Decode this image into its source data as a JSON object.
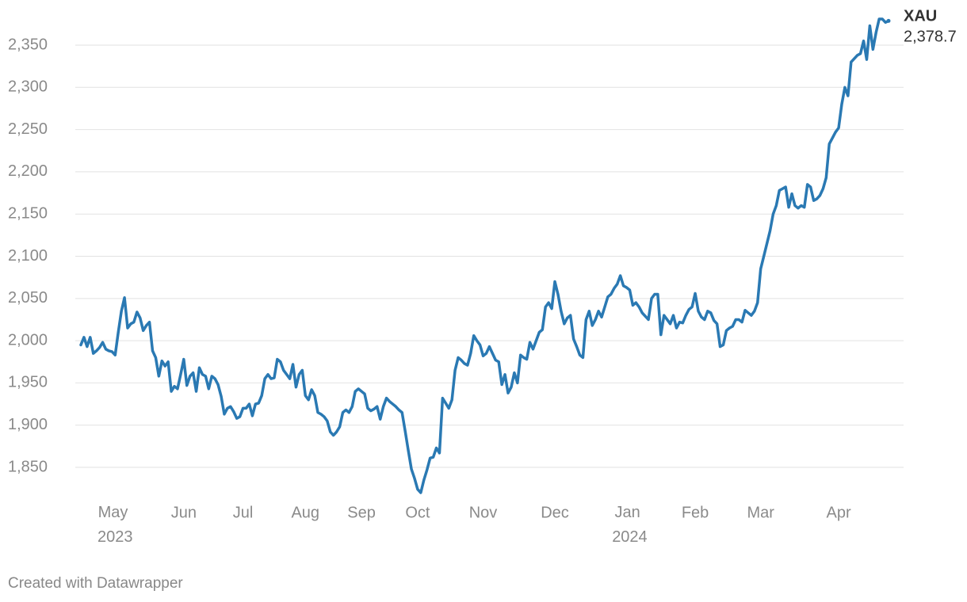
{
  "chart_data": {
    "type": "line",
    "categories": [
      null,
      null,
      null,
      null,
      null,
      null,
      null,
      null,
      null,
      null,
      null,
      "May 2023",
      null,
      null,
      null,
      null,
      null,
      null,
      null,
      null,
      null,
      null,
      null,
      null,
      null,
      null,
      null,
      null,
      null,
      null,
      null,
      null,
      null,
      "Jun",
      null,
      null,
      null,
      null,
      null,
      null,
      null,
      null,
      null,
      null,
      null,
      null,
      null,
      null,
      null,
      null,
      null,
      null,
      "Jul",
      null,
      null,
      null,
      null,
      null,
      null,
      null,
      null,
      null,
      null,
      null,
      null,
      null,
      null,
      null,
      null,
      null,
      null,
      null,
      "Aug",
      null,
      null,
      null,
      null,
      null,
      null,
      null,
      null,
      null,
      null,
      null,
      null,
      null,
      null,
      null,
      null,
      null,
      "Sep",
      null,
      null,
      null,
      null,
      null,
      null,
      null,
      null,
      null,
      null,
      null,
      null,
      null,
      null,
      null,
      null,
      null,
      "Oct",
      null,
      null,
      null,
      null,
      null,
      null,
      null,
      null,
      null,
      null,
      null,
      null,
      null,
      null,
      null,
      null,
      null,
      null,
      null,
      null,
      "Nov",
      null,
      null,
      null,
      null,
      null,
      null,
      null,
      null,
      null,
      null,
      null,
      null,
      null,
      null,
      null,
      null,
      null,
      null,
      null,
      null,
      null,
      null,
      "Dec",
      null,
      null,
      null,
      null,
      null,
      null,
      null,
      null,
      null,
      null,
      null,
      null,
      null,
      null,
      null,
      null,
      null,
      null,
      null,
      null,
      null,
      null,
      null,
      "Jan 2024",
      null,
      null,
      null,
      null,
      null,
      null,
      null,
      null,
      null,
      null,
      null,
      null,
      null,
      null,
      null,
      null,
      null,
      null,
      null,
      null,
      "Feb",
      null,
      null,
      null,
      null,
      null,
      null,
      null,
      null,
      null,
      null,
      null,
      null,
      null,
      null,
      null,
      null,
      null,
      null,
      null,
      null,
      "Mar",
      null,
      null,
      null,
      null,
      null,
      null,
      null,
      null,
      null,
      null,
      null,
      null,
      null,
      null,
      null,
      null,
      null,
      null,
      null,
      null,
      null,
      null,
      null,
      null,
      "Apr",
      null,
      null,
      null,
      null,
      null,
      null,
      null,
      null,
      null,
      null,
      null,
      null,
      null,
      null,
      null,
      null
    ],
    "series": [
      {
        "name": "XAU",
        "color": "#2a79b3",
        "end_label": "2,378.7",
        "values": [
          1995,
          2004,
          1993,
          2004,
          1985,
          1988,
          1992,
          1998,
          1990,
          1988,
          1987,
          1983,
          2010,
          2035,
          2051,
          2015,
          2020,
          2022,
          2034,
          2027,
          2012,
          2018,
          2022,
          1988,
          1980,
          1958,
          1976,
          1970,
          1975,
          1940,
          1946,
          1943,
          1960,
          1978,
          1947,
          1958,
          1962,
          1940,
          1968,
          1960,
          1958,
          1943,
          1958,
          1955,
          1948,
          1934,
          1913,
          1920,
          1922,
          1916,
          1908,
          1910,
          1920,
          1920,
          1925,
          1911,
          1925,
          1926,
          1935,
          1955,
          1960,
          1955,
          1956,
          1978,
          1975,
          1965,
          1960,
          1955,
          1972,
          1945,
          1960,
          1965,
          1935,
          1930,
          1942,
          1935,
          1915,
          1913,
          1910,
          1905,
          1892,
          1888,
          1892,
          1898,
          1915,
          1918,
          1915,
          1922,
          1940,
          1943,
          1940,
          1937,
          1920,
          1917,
          1919,
          1922,
          1907,
          1922,
          1932,
          1928,
          1925,
          1922,
          1918,
          1915,
          1893,
          1870,
          1848,
          1837,
          1824,
          1820,
          1835,
          1847,
          1861,
          1862,
          1873,
          1867,
          1932,
          1926,
          1920,
          1930,
          1965,
          1980,
          1977,
          1973,
          1971,
          1985,
          2006,
          2000,
          1995,
          1982,
          1985,
          1993,
          1985,
          1977,
          1975,
          1948,
          1960,
          1938,
          1945,
          1962,
          1950,
          1983,
          1980,
          1978,
          1998,
          1990,
          2000,
          2010,
          2013,
          2040,
          2045,
          2038,
          2070,
          2055,
          2035,
          2020,
          2027,
          2030,
          2002,
          1993,
          1983,
          1980,
          2025,
          2035,
          2018,
          2025,
          2035,
          2028,
          2040,
          2052,
          2055,
          2062,
          2067,
          2077,
          2065,
          2063,
          2060,
          2042,
          2045,
          2040,
          2033,
          2029,
          2025,
          2050,
          2055,
          2055,
          2007,
          2030,
          2025,
          2020,
          2030,
          2015,
          2022,
          2021,
          2030,
          2037,
          2040,
          2056,
          2035,
          2028,
          2025,
          2035,
          2033,
          2024,
          2020,
          1993,
          1995,
          2012,
          2015,
          2017,
          2025,
          2025,
          2022,
          2036,
          2033,
          2030,
          2035,
          2045,
          2085,
          2100,
          2115,
          2130,
          2150,
          2160,
          2178,
          2180,
          2182,
          2158,
          2174,
          2160,
          2157,
          2160,
          2158,
          2185,
          2182,
          2166,
          2168,
          2172,
          2180,
          2193,
          2233,
          2240,
          2247,
          2252,
          2280,
          2300,
          2290,
          2330,
          2334,
          2338,
          2340,
          2355,
          2333,
          2373,
          2345,
          2365,
          2381,
          2381,
          2377,
          2378.7
        ]
      }
    ],
    "ylim": [
      1817,
      2385
    ],
    "yticks": [
      {
        "value": 1850,
        "label": "1,850"
      },
      {
        "value": 1900,
        "label": "1,900"
      },
      {
        "value": 1950,
        "label": "1,950"
      },
      {
        "value": 2000,
        "label": "2,000"
      },
      {
        "value": 2050,
        "label": "2,050"
      },
      {
        "value": 2100,
        "label": "2,100"
      },
      {
        "value": 2150,
        "label": "2,150"
      },
      {
        "value": 2200,
        "label": "2,200"
      },
      {
        "value": 2250,
        "label": "2,250"
      },
      {
        "value": 2300,
        "label": "2,300"
      },
      {
        "value": 2350,
        "label": "2,350"
      }
    ],
    "grid": true,
    "credit": "Created with Datawrapper"
  }
}
